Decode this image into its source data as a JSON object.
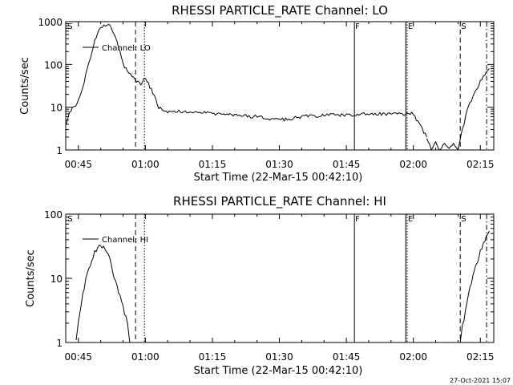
{
  "chart_data": [
    {
      "type": "line",
      "title": "RHESSI PARTICLE_RATE Channel: LO",
      "ylabel": "Counts/sec",
      "xlabel": "Start Time (22-Mar-15 00:42:10)",
      "y_scale": "log",
      "ylim": [
        1,
        1000
      ],
      "xlim_minutes": [
        42.17,
        138.0
      ],
      "x_ticks": [
        {
          "label": "00:45",
          "minutes": 45
        },
        {
          "label": "01:00",
          "minutes": 60
        },
        {
          "label": "01:15",
          "minutes": 75
        },
        {
          "label": "01:30",
          "minutes": 90
        },
        {
          "label": "01:45",
          "minutes": 105
        },
        {
          "label": "02:00",
          "minutes": 120
        },
        {
          "label": "02:15",
          "minutes": 135
        }
      ],
      "y_ticks": [
        {
          "label": "1",
          "value": 1
        },
        {
          "label": "10",
          "value": 10
        },
        {
          "label": "100",
          "value": 100
        },
        {
          "label": "1000",
          "value": 1000
        }
      ],
      "legend": "Channel: LO",
      "markers": [
        {
          "label": "S",
          "minutes": 42.4,
          "style": "none"
        },
        {
          "label": "",
          "minutes": 57.8,
          "style": "dashed"
        },
        {
          "label": "",
          "minutes": 59.8,
          "style": "dotted"
        },
        {
          "label": "F",
          "minutes": 106.8,
          "style": "solid"
        },
        {
          "label": "",
          "minutes": 118.3,
          "style": "solid"
        },
        {
          "label": "E",
          "minutes": 118.6,
          "style": "dotted"
        },
        {
          "label": "S",
          "minutes": 130.5,
          "style": "dashed"
        },
        {
          "label": "",
          "minutes": 136.4,
          "style": "dashdot"
        }
      ],
      "series": [
        {
          "name": "Channel: LO",
          "segments": [
            {
              "x": [
                42.2,
                43,
                44,
                45,
                46,
                47,
                48,
                49,
                50,
                51,
                52,
                53,
                54,
                55,
                56,
                57,
                58,
                59,
                60,
                61,
                62,
                63,
                65,
                70,
                75,
                80,
                85,
                90,
                95,
                100,
                105,
                110,
                115,
                120,
                122,
                123
              ],
              "y": [
                4,
                8,
                10,
                14,
                30,
                80,
                200,
                450,
                750,
                850,
                800,
                500,
                250,
                100,
                70,
                55,
                40,
                35,
                50,
                30,
                18,
                10,
                8,
                8,
                7,
                6.5,
                6,
                5,
                6,
                6.5,
                6.5,
                7,
                7,
                7,
                3,
                2
              ]
            },
            {
              "x": [
                123,
                124,
                125,
                126,
                127,
                128,
                129,
                130
              ],
              "y": [
                2,
                1,
                1.5,
                1,
                1.5,
                1,
                1.5,
                1
              ]
            },
            {
              "x": [
                130,
                131,
                132,
                133,
                134,
                135,
                136,
                137
              ],
              "y": [
                1,
                3,
                8,
                15,
                25,
                40,
                60,
                80
              ]
            }
          ]
        }
      ]
    },
    {
      "type": "line",
      "title": "RHESSI PARTICLE_RATE Channel: HI",
      "ylabel": "Counts/sec",
      "xlabel": "Start Time (22-Mar-15 00:42:10)",
      "y_scale": "log",
      "ylim": [
        1,
        100
      ],
      "xlim_minutes": [
        42.17,
        138.0
      ],
      "x_ticks": [
        {
          "label": "00:45",
          "minutes": 45
        },
        {
          "label": "01:00",
          "minutes": 60
        },
        {
          "label": "01:15",
          "minutes": 75
        },
        {
          "label": "01:30",
          "minutes": 90
        },
        {
          "label": "01:45",
          "minutes": 105
        },
        {
          "label": "02:00",
          "minutes": 120
        },
        {
          "label": "02:15",
          "minutes": 135
        }
      ],
      "y_ticks": [
        {
          "label": "1",
          "value": 1
        },
        {
          "label": "10",
          "value": 10
        },
        {
          "label": "100",
          "value": 100
        }
      ],
      "legend": "Channel: HI",
      "markers": [
        {
          "label": "S",
          "minutes": 42.4,
          "style": "none"
        },
        {
          "label": "",
          "minutes": 57.8,
          "style": "dashed"
        },
        {
          "label": "",
          "minutes": 59.8,
          "style": "dotted"
        },
        {
          "label": "F",
          "minutes": 106.8,
          "style": "solid"
        },
        {
          "label": "",
          "minutes": 118.3,
          "style": "solid"
        },
        {
          "label": "E",
          "minutes": 118.6,
          "style": "dotted"
        },
        {
          "label": "S",
          "minutes": 130.5,
          "style": "dashed"
        },
        {
          "label": "",
          "minutes": 136.4,
          "style": "dashdot"
        }
      ],
      "series": [
        {
          "name": "Channel: HI",
          "segments": [
            {
              "x": [
                44.5,
                45,
                46,
                47,
                48,
                49,
                50,
                51,
                52,
                53,
                54,
                55,
                56,
                56.5
              ],
              "y": [
                1,
                2,
                6,
                12,
                20,
                28,
                33,
                30,
                20,
                10,
                6,
                3.5,
                2,
                1
              ]
            },
            {
              "x": [
                130.5,
                131,
                132,
                133,
                134,
                135,
                136,
                137
              ],
              "y": [
                1,
                1.8,
                4,
                9,
                16,
                26,
                40,
                55
              ]
            }
          ]
        }
      ]
    }
  ],
  "footer": {
    "date_stamp": "27-Oct-2021 15:07"
  }
}
